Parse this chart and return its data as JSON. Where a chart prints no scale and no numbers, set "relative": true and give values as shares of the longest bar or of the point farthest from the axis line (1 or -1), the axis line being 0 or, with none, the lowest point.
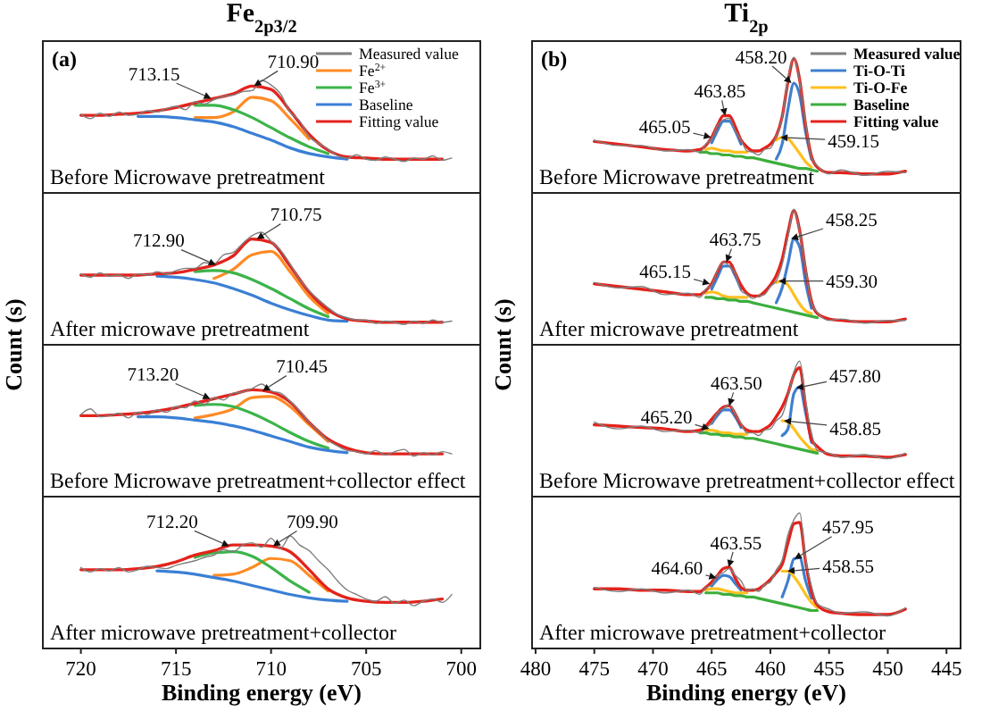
{
  "chart_data": [
    {
      "type": "line",
      "title": "Fe$_{2p3/2}$",
      "ylabel": "Count (s)",
      "subtitle": "Before Microwave pretreatment",
      "relative": true,
      "legend": "top right",
      "tick_labels": false,
      "xlim": [
        722,
        699
      ],
      "x": [
        720,
        719,
        718,
        717,
        716,
        715,
        714,
        713,
        712,
        711,
        710,
        709,
        708,
        707,
        706,
        705,
        704,
        703,
        702,
        701
      ],
      "annotations": [
        "(a)",
        {
          "text": "713.15",
          "x": 713.15,
          "y": 0.84
        },
        {
          "text": "710.90",
          "x": 710.9,
          "y": 0.95
        }
      ],
      "series": [
        {
          "name": "Measured value",
          "color": "#7f7f7f",
          "x": [
            720,
            719.5,
            719,
            718.5,
            718,
            717.5,
            717,
            716.5,
            716,
            715.5,
            715,
            714.5,
            714,
            713.5,
            713,
            712.5,
            712,
            711.5,
            711,
            710.5,
            710,
            709.5,
            709,
            708.5,
            708,
            707.5,
            707,
            706.5,
            706,
            705.5,
            705,
            704.5,
            704,
            703.5,
            703,
            702.5,
            702,
            701.5,
            701,
            700.5
          ],
          "values": [
            0.7,
            0.66,
            0.71,
            0.68,
            0.72,
            0.69,
            0.7,
            0.73,
            0.72,
            0.75,
            0.77,
            0.74,
            0.81,
            0.79,
            0.83,
            0.86,
            0.87,
            0.9,
            0.91,
            1.0,
            0.96,
            0.88,
            0.72,
            0.64,
            0.5,
            0.44,
            0.39,
            0.33,
            0.31,
            0.34,
            0.3,
            0.29,
            0.32,
            0.3,
            0.28,
            0.31,
            0.3,
            0.33,
            0.29,
            0.31
          ]
        },
        {
          "name": "Fe$^{2+}$",
          "color": "#ff8a24",
          "values": [
            null,
            null,
            null,
            null,
            null,
            null,
            0.67,
            0.67,
            0.72,
            0.85,
            0.82,
            0.66,
            0.48,
            null,
            null,
            null,
            null,
            null,
            null,
            null
          ]
        },
        {
          "name": "Fe$^{3+}$",
          "color": "#3cb44a",
          "values": [
            null,
            null,
            null,
            null,
            null,
            null,
            0.78,
            0.78,
            0.74,
            0.67,
            0.58,
            0.49,
            0.41,
            0.35,
            null,
            null,
            null,
            null,
            null,
            null
          ]
        },
        {
          "name": "Baseline",
          "color": "#3a7fd5",
          "values": [
            null,
            null,
            null,
            0.68,
            0.68,
            0.67,
            0.65,
            0.63,
            0.59,
            0.53,
            0.47,
            0.4,
            0.35,
            0.32,
            0.3,
            null,
            null,
            null,
            null,
            null
          ]
        },
        {
          "name": "Fitting value",
          "color": "#e3231c",
          "values": [
            0.69,
            0.69,
            0.7,
            0.71,
            0.73,
            0.76,
            0.8,
            0.84,
            0.88,
            0.95,
            0.92,
            0.73,
            0.52,
            0.38,
            0.32,
            0.31,
            0.3,
            0.3,
            0.3,
            0.3
          ]
        }
      ]
    },
    {
      "type": "line",
      "subtitle": "After microwave pretreatment",
      "relative": true,
      "tick_labels": false,
      "xlim": [
        722,
        699
      ],
      "x": [
        720,
        719,
        718,
        717,
        716,
        715,
        714,
        713,
        712,
        711,
        710,
        709,
        708,
        707,
        706,
        705,
        704,
        703,
        702,
        701
      ],
      "annotations": [
        {
          "text": "712.90",
          "x": 712.9,
          "y": 0.71
        },
        {
          "text": "710.75",
          "x": 710.75,
          "y": 0.94
        }
      ],
      "series": [
        {
          "color": "#7f7f7f",
          "x": [
            720,
            719.5,
            719,
            718.5,
            718,
            717.5,
            717,
            716.5,
            716,
            715.5,
            715,
            714.5,
            714,
            713.5,
            713,
            712.5,
            712,
            711.5,
            711,
            710.5,
            710,
            709.5,
            709,
            708.5,
            708,
            707.5,
            707,
            706.5,
            706,
            705.5,
            705,
            704.5,
            704,
            703.5,
            703,
            702.5,
            702,
            701.5,
            701,
            700.5
          ],
          "values": [
            0.63,
            0.6,
            0.64,
            0.61,
            0.62,
            0.59,
            0.63,
            0.62,
            0.65,
            0.63,
            0.66,
            0.68,
            0.68,
            0.73,
            0.72,
            0.8,
            0.82,
            0.9,
            0.97,
            1.0,
            0.92,
            0.84,
            0.72,
            0.58,
            0.48,
            0.4,
            0.33,
            0.27,
            0.24,
            0.22,
            0.22,
            0.19,
            0.21,
            0.2,
            0.18,
            0.21,
            0.19,
            0.22,
            0.2,
            0.21
          ]
        },
        {
          "color": "#ff8a24",
          "values": [
            null,
            null,
            null,
            null,
            null,
            null,
            null,
            0.59,
            0.67,
            0.8,
            0.83,
            0.65,
            0.43,
            0.28,
            null,
            null,
            null,
            null,
            null,
            null
          ]
        },
        {
          "color": "#3cb44a",
          "values": [
            null,
            null,
            null,
            null,
            null,
            null,
            0.65,
            0.66,
            0.64,
            0.58,
            0.5,
            0.41,
            0.32,
            0.25,
            null,
            null,
            null,
            null,
            null,
            null
          ]
        },
        {
          "color": "#3a7fd5",
          "values": [
            null,
            null,
            null,
            null,
            0.61,
            0.6,
            0.58,
            0.55,
            0.5,
            0.44,
            0.37,
            0.31,
            0.26,
            0.22,
            0.21,
            null,
            null,
            null,
            null,
            null
          ]
        },
        {
          "color": "#e3231c",
          "values": [
            0.62,
            0.62,
            0.62,
            0.62,
            0.63,
            0.64,
            0.67,
            0.71,
            0.79,
            0.94,
            0.91,
            0.7,
            0.47,
            0.31,
            0.23,
            0.21,
            0.2,
            0.2,
            0.2,
            0.2
          ]
        }
      ]
    },
    {
      "type": "line",
      "subtitle": "Before Microwave pretreatment+collector effect",
      "relative": true,
      "tick_labels": false,
      "xlim": [
        722,
        699
      ],
      "x": [
        720,
        719,
        718,
        717,
        716,
        715,
        714,
        713,
        712,
        711,
        710,
        709,
        708,
        707,
        706,
        705,
        704,
        703,
        702,
        701
      ],
      "annotations": [
        {
          "text": "713.20",
          "x": 713.2,
          "y": 0.87
        },
        {
          "text": "710.45",
          "x": 710.45,
          "y": 0.94
        }
      ],
      "series": [
        {
          "color": "#7f7f7f",
          "x": [
            720,
            719.5,
            719,
            718.5,
            718,
            717.5,
            717,
            716.5,
            716,
            715.5,
            715,
            714.5,
            714,
            713.5,
            713,
            712.5,
            712,
            711.5,
            711,
            710.5,
            710,
            709.5,
            709,
            708.5,
            708,
            707.5,
            707,
            706.5,
            706,
            705.5,
            705,
            704.5,
            704,
            703.5,
            703,
            702.5,
            702,
            701.5,
            701,
            700.5
          ],
          "values": [
            0.73,
            0.78,
            0.71,
            0.72,
            0.74,
            0.7,
            0.75,
            0.73,
            0.77,
            0.75,
            0.8,
            0.79,
            0.85,
            0.82,
            0.88,
            0.86,
            0.92,
            0.93,
            0.96,
            1.0,
            0.94,
            0.92,
            0.85,
            0.76,
            0.66,
            0.58,
            0.5,
            0.45,
            0.41,
            0.4,
            0.38,
            0.41,
            0.37,
            0.4,
            0.42,
            0.36,
            0.39,
            0.37,
            0.4,
            0.38
          ]
        },
        {
          "color": "#ff8a24",
          "values": [
            null,
            null,
            null,
            null,
            null,
            null,
            0.7,
            0.73,
            0.78,
            0.88,
            0.89,
            0.8,
            0.64,
            0.49,
            null,
            null,
            null,
            null,
            null,
            null
          ]
        },
        {
          "color": "#3cb44a",
          "values": [
            null,
            null,
            null,
            null,
            null,
            null,
            0.81,
            0.82,
            0.8,
            0.74,
            0.66,
            0.57,
            0.49,
            0.43,
            null,
            null,
            null,
            null,
            null,
            null
          ]
        },
        {
          "color": "#3a7fd5",
          "values": [
            null,
            null,
            null,
            0.71,
            0.71,
            0.7,
            0.68,
            0.66,
            0.63,
            0.59,
            0.54,
            0.49,
            0.44,
            0.41,
            0.39,
            null,
            null,
            null,
            null,
            null
          ]
        },
        {
          "color": "#e3231c",
          "values": [
            0.72,
            0.72,
            0.73,
            0.74,
            0.76,
            0.79,
            0.83,
            0.87,
            0.91,
            0.95,
            0.93,
            0.84,
            0.66,
            0.51,
            0.43,
            0.39,
            0.38,
            0.38,
            0.38,
            0.38
          ]
        }
      ]
    },
    {
      "type": "line",
      "subtitle": "After microwave pretreatment+collector",
      "xlabel": "Binding energy (eV)",
      "relative": true,
      "tick_labels": "x",
      "xlim": [
        722,
        699
      ],
      "xticks": [
        720,
        715,
        710,
        705,
        700
      ],
      "x": [
        720,
        719,
        718,
        717,
        716,
        715,
        714,
        713,
        712,
        711,
        710,
        709,
        708,
        707,
        706,
        705,
        704,
        703,
        702,
        701
      ],
      "annotations": [
        {
          "text": "712.20",
          "x": 712.2,
          "y": 0.91
        },
        {
          "text": "709.90",
          "x": 709.9,
          "y": 0.91
        }
      ],
      "series": [
        {
          "color": "#7f7f7f",
          "x": [
            720,
            719.5,
            719,
            718.5,
            718,
            717.5,
            717,
            716.5,
            716,
            715.5,
            715,
            714.5,
            714,
            713.5,
            713,
            712.5,
            712,
            711.5,
            711,
            710.5,
            710,
            709.5,
            709,
            708.5,
            708,
            707.5,
            707,
            706.5,
            706,
            705.5,
            705,
            704.5,
            704,
            703.5,
            703,
            702.5,
            702,
            701.5,
            701,
            700.5
          ],
          "values": [
            0.72,
            0.68,
            0.71,
            0.69,
            0.72,
            0.68,
            0.7,
            0.73,
            0.72,
            0.71,
            0.74,
            0.76,
            0.78,
            0.81,
            0.83,
            0.88,
            0.86,
            0.92,
            0.94,
            0.9,
            0.98,
            0.89,
            1.0,
            0.92,
            0.87,
            0.78,
            0.7,
            0.6,
            0.52,
            0.48,
            0.44,
            0.42,
            0.46,
            0.4,
            0.43,
            0.38,
            0.42,
            0.44,
            0.41,
            0.48
          ]
        },
        {
          "color": "#ff8a24",
          "values": [
            null,
            null,
            null,
            null,
            null,
            null,
            null,
            0.65,
            0.66,
            0.72,
            0.8,
            0.78,
            0.65,
            0.51,
            null,
            null,
            null,
            null,
            null,
            null
          ]
        },
        {
          "color": "#3cb44a",
          "values": [
            null,
            null,
            null,
            null,
            null,
            null,
            0.81,
            0.85,
            0.86,
            0.82,
            0.72,
            0.6,
            0.5,
            null,
            null,
            null,
            null,
            null,
            null,
            null
          ]
        },
        {
          "color": "#3a7fd5",
          "values": [
            null,
            null,
            null,
            null,
            0.69,
            0.68,
            0.66,
            0.63,
            0.6,
            0.56,
            0.52,
            0.48,
            0.45,
            0.43,
            0.42,
            null,
            null,
            null,
            null,
            null
          ]
        },
        {
          "color": "#e3231c",
          "values": [
            0.7,
            0.7,
            0.7,
            0.71,
            0.73,
            0.77,
            0.83,
            0.87,
            0.92,
            0.92,
            0.91,
            0.86,
            0.7,
            0.53,
            0.45,
            0.42,
            0.41,
            0.41,
            0.42,
            0.44
          ]
        }
      ]
    },
    {
      "type": "line",
      "title": "Ti$_{2p}$",
      "ylabel": "Count (s)",
      "subtitle": "Before Microwave pretreatment",
      "relative": true,
      "legend": "top right",
      "tick_labels": false,
      "xlim": [
        480.3,
        443.8
      ],
      "x": [
        475,
        473,
        471,
        469,
        467,
        466,
        465.5,
        465,
        464.5,
        464,
        463.5,
        463,
        462.5,
        462,
        461.5,
        461,
        460.5,
        460,
        459.5,
        459,
        458.5,
        458,
        457.5,
        457,
        456.5,
        456,
        455,
        454,
        452,
        450,
        448.5
      ],
      "annotations": [
        "(b)",
        {
          "text": "465.05",
          "x": 465.05,
          "y": 0.41
        },
        {
          "text": "463.85",
          "x": 463.85,
          "y": 0.57
        },
        {
          "text": "459.15",
          "x": 459.15,
          "y": 0.41
        },
        {
          "text": "458.20",
          "x": 458.2,
          "y": 0.81
        }
      ],
      "series": [
        {
          "name": "Measured value",
          "color": "#7f7f7f",
          "values": [
            0.39,
            0.35,
            0.35,
            0.31,
            0.32,
            0.3,
            0.36,
            0.4,
            0.5,
            0.54,
            0.55,
            0.46,
            0.39,
            0.31,
            0.3,
            0.28,
            0.32,
            0.33,
            0.42,
            0.55,
            0.84,
            1.0,
            0.82,
            0.52,
            0.26,
            0.2,
            0.14,
            0.17,
            0.13,
            0.16,
            0.15
          ]
        },
        {
          "name": "Ti-O-Ti",
          "color": "#3f7fcf",
          "values": [
            null,
            null,
            null,
            null,
            null,
            null,
            null,
            0.37,
            0.46,
            0.53,
            0.53,
            0.46,
            0.36,
            null,
            null,
            null,
            null,
            null,
            0.25,
            0.36,
            0.62,
            0.81,
            0.72,
            0.45,
            0.25,
            null,
            null,
            null,
            null,
            null,
            null
          ]
        },
        {
          "name": "Ti-O-Fe",
          "color": "#ffbf1f",
          "values": [
            null,
            null,
            null,
            null,
            null,
            null,
            0.32,
            0.33,
            0.32,
            0.31,
            0.31,
            0.3,
            0.3,
            0.3,
            null,
            null,
            null,
            null,
            0.39,
            0.41,
            0.4,
            0.35,
            0.29,
            0.23,
            0.19,
            null,
            null,
            null,
            null,
            null,
            null
          ]
        },
        {
          "name": "Baseline",
          "color": "#3cae3c",
          "values": [
            null,
            null,
            null,
            null,
            null,
            0.3,
            0.3,
            0.29,
            0.29,
            0.28,
            0.28,
            0.27,
            0.27,
            0.26,
            0.26,
            0.25,
            0.24,
            0.23,
            0.22,
            0.21,
            0.2,
            0.19,
            0.18,
            0.18,
            0.17,
            0.16,
            null,
            null,
            null,
            null,
            null
          ]
        },
        {
          "name": "Fitting value",
          "color": "#e3231c",
          "values": [
            0.38,
            0.36,
            0.34,
            0.32,
            0.31,
            0.32,
            0.35,
            0.41,
            0.5,
            0.57,
            0.57,
            0.49,
            0.39,
            0.34,
            0.31,
            0.31,
            0.33,
            0.36,
            0.42,
            0.56,
            0.82,
            0.99,
            0.83,
            0.5,
            0.27,
            0.19,
            0.15,
            0.15,
            0.14,
            0.14,
            0.16
          ]
        }
      ]
    },
    {
      "type": "line",
      "subtitle": "After microwave pretreatment",
      "relative": true,
      "tick_labels": false,
      "xlim": [
        480.3,
        443.8
      ],
      "x": [
        475,
        473,
        471,
        469,
        467,
        466,
        465.5,
        465,
        464.5,
        464,
        463.5,
        463,
        462.5,
        462,
        461.5,
        461,
        460.5,
        460,
        459.5,
        459,
        458.5,
        458,
        457.5,
        457,
        456.5,
        456,
        455,
        454,
        452,
        450,
        448.5
      ],
      "annotations": [
        {
          "text": "465.15",
          "x": 465.15,
          "y": 0.45
        },
        {
          "text": "463.75",
          "x": 463.75,
          "y": 0.61
        },
        {
          "text": "459.30",
          "x": 459.3,
          "y": 0.47
        },
        {
          "text": "458.25",
          "x": 458.25,
          "y": 0.78
        }
      ],
      "series": [
        {
          "color": "#7f7f7f",
          "values": [
            0.46,
            0.42,
            0.43,
            0.37,
            0.38,
            0.35,
            0.41,
            0.44,
            0.55,
            0.61,
            0.58,
            0.53,
            0.4,
            0.37,
            0.34,
            0.36,
            0.37,
            0.43,
            0.47,
            0.59,
            0.8,
            1.0,
            0.83,
            0.56,
            0.31,
            0.24,
            0.18,
            0.19,
            0.16,
            0.18,
            0.18
          ]
        },
        {
          "color": "#3f7fcf",
          "values": [
            null,
            null,
            null,
            null,
            null,
            null,
            null,
            0.41,
            0.5,
            0.58,
            0.58,
            0.51,
            0.41,
            null,
            null,
            null,
            null,
            null,
            0.31,
            0.42,
            0.6,
            0.78,
            0.72,
            0.46,
            0.27,
            null,
            null,
            null,
            null,
            null,
            null
          ]
        },
        {
          "color": "#ffbf1f",
          "values": [
            null,
            null,
            null,
            null,
            null,
            null,
            0.38,
            0.39,
            0.38,
            0.36,
            0.35,
            0.35,
            0.35,
            0.35,
            null,
            null,
            null,
            null,
            0.46,
            0.47,
            0.44,
            0.37,
            0.3,
            0.25,
            0.23,
            null,
            null,
            null,
            null,
            null,
            null
          ]
        },
        {
          "color": "#3cae3c",
          "values": [
            null,
            null,
            null,
            null,
            null,
            null,
            0.35,
            0.35,
            0.34,
            0.34,
            0.33,
            0.33,
            0.32,
            0.32,
            0.31,
            0.3,
            0.29,
            0.28,
            0.27,
            0.26,
            0.25,
            0.24,
            0.23,
            0.22,
            0.21,
            0.2,
            null,
            null,
            null,
            null,
            null
          ]
        },
        {
          "color": "#e3231c",
          "values": [
            0.45,
            0.43,
            0.41,
            0.39,
            0.37,
            0.37,
            0.4,
            0.45,
            0.54,
            0.61,
            0.61,
            0.53,
            0.44,
            0.38,
            0.36,
            0.36,
            0.39,
            0.44,
            0.51,
            0.63,
            0.83,
            0.99,
            0.84,
            0.55,
            0.32,
            0.23,
            0.19,
            0.18,
            0.17,
            0.17,
            0.19
          ]
        }
      ]
    },
    {
      "type": "line",
      "subtitle": "Before Microwave pretreatment+collector effect",
      "relative": true,
      "tick_labels": false,
      "xlim": [
        480.3,
        443.8
      ],
      "x": [
        475,
        473,
        471,
        469,
        467,
        466,
        465.5,
        465,
        464.5,
        464,
        463.5,
        463,
        462.5,
        462,
        461.5,
        461,
        460.5,
        460,
        459.5,
        459,
        458.5,
        458,
        457.5,
        457,
        456.5,
        456,
        455,
        454,
        452,
        450,
        448.5
      ],
      "annotations": [
        {
          "text": "465.20",
          "x": 465.2,
          "y": 0.5
        },
        {
          "text": "463.50",
          "x": 463.5,
          "y": 0.67
        },
        {
          "text": "458.85",
          "x": 458.85,
          "y": 0.56
        },
        {
          "text": "457.80",
          "x": 457.8,
          "y": 0.8
        }
      ],
      "series": [
        {
          "color": "#7f7f7f",
          "values": [
            0.55,
            0.5,
            0.52,
            0.48,
            0.49,
            0.47,
            0.51,
            0.54,
            0.62,
            0.65,
            0.68,
            0.61,
            0.54,
            0.47,
            0.47,
            0.45,
            0.49,
            0.5,
            0.56,
            0.6,
            0.74,
            0.92,
            1.0,
            0.7,
            0.47,
            0.34,
            0.32,
            0.29,
            0.31,
            0.28,
            0.32
          ]
        },
        {
          "color": "#3f7fcf",
          "values": [
            null,
            null,
            null,
            null,
            null,
            null,
            null,
            0.54,
            0.6,
            0.64,
            0.64,
            0.59,
            0.51,
            null,
            null,
            null,
            null,
            null,
            null,
            0.45,
            0.5,
            0.76,
            0.81,
            0.62,
            0.4,
            null,
            null,
            null,
            null,
            null,
            null
          ]
        },
        {
          "color": "#ffbf1f",
          "values": [
            null,
            null,
            null,
            null,
            null,
            null,
            0.49,
            0.49,
            0.48,
            0.47,
            0.47,
            0.46,
            0.46,
            0.46,
            null,
            null,
            null,
            null,
            null,
            0.56,
            0.55,
            0.5,
            0.44,
            0.39,
            0.35,
            0.34,
            null,
            null,
            null,
            null,
            null
          ]
        },
        {
          "color": "#3cae3c",
          "values": [
            null,
            null,
            null,
            null,
            null,
            0.47,
            0.47,
            0.46,
            0.46,
            0.45,
            0.45,
            0.44,
            0.44,
            0.43,
            0.43,
            0.42,
            0.41,
            0.4,
            0.39,
            0.38,
            0.37,
            0.36,
            0.35,
            0.34,
            0.33,
            0.32,
            null,
            null,
            null,
            null,
            null
          ]
        },
        {
          "color": "#e3231c",
          "values": [
            0.53,
            0.52,
            0.51,
            0.5,
            0.48,
            0.49,
            0.52,
            0.57,
            0.62,
            0.66,
            0.67,
            0.61,
            0.53,
            0.49,
            0.48,
            0.48,
            0.5,
            0.53,
            0.59,
            0.66,
            0.76,
            0.9,
            0.95,
            0.67,
            0.42,
            0.37,
            0.31,
            0.3,
            0.3,
            0.29,
            0.31
          ]
        }
      ]
    },
    {
      "type": "line",
      "subtitle": "After microwave pretreatment+collector",
      "xlabel": "Binding energy (eV)",
      "relative": true,
      "tick_labels": "x",
      "xlim": [
        480.3,
        443.8
      ],
      "xticks": [
        480,
        475,
        470,
        465,
        460,
        455,
        450,
        445
      ],
      "x": [
        475,
        473,
        471,
        469,
        467,
        466,
        465.5,
        465,
        464.5,
        464,
        463.5,
        463,
        462.5,
        462,
        461.5,
        461,
        460.5,
        460,
        459.5,
        459,
        458.5,
        458,
        457.5,
        457,
        456.5,
        456,
        455,
        454,
        452,
        450,
        448.5
      ],
      "annotations": [
        {
          "text": "464.60",
          "x": 464.6,
          "y": 0.52
        },
        {
          "text": "463.55",
          "x": 463.55,
          "y": 0.6
        },
        {
          "text": "458.55",
          "x": 458.55,
          "y": 0.57
        },
        {
          "text": "457.95",
          "x": 457.95,
          "y": 0.66
        }
      ],
      "series": [
        {
          "color": "#7f7f7f",
          "values": [
            0.45,
            0.42,
            0.44,
            0.41,
            0.43,
            0.4,
            0.45,
            0.47,
            0.54,
            0.56,
            0.59,
            0.54,
            0.5,
            0.43,
            0.44,
            0.42,
            0.47,
            0.49,
            0.58,
            0.65,
            0.84,
            0.95,
            1.0,
            0.66,
            0.46,
            0.33,
            0.29,
            0.26,
            0.27,
            0.24,
            0.3
          ]
        },
        {
          "color": "#3f7fcf",
          "values": [
            null,
            null,
            null,
            null,
            null,
            null,
            null,
            0.46,
            0.51,
            0.54,
            0.53,
            0.48,
            0.43,
            null,
            null,
            null,
            null,
            null,
            null,
            0.38,
            0.5,
            0.66,
            0.67,
            0.5,
            0.37,
            null,
            null,
            null,
            null,
            null,
            null
          ]
        },
        {
          "color": "#ffbf1f",
          "values": [
            null,
            null,
            null,
            null,
            null,
            null,
            0.43,
            0.44,
            0.44,
            0.43,
            0.42,
            0.41,
            0.41,
            0.41,
            null,
            null,
            null,
            null,
            null,
            0.57,
            0.57,
            0.53,
            0.47,
            0.4,
            0.34,
            0.3,
            null,
            null,
            null,
            null,
            null
          ]
        },
        {
          "color": "#3cae3c",
          "values": [
            null,
            null,
            null,
            null,
            null,
            null,
            0.41,
            0.41,
            0.41,
            0.4,
            0.4,
            0.39,
            0.39,
            0.38,
            0.38,
            0.37,
            0.36,
            0.35,
            0.34,
            0.33,
            0.32,
            0.31,
            0.3,
            0.29,
            0.28,
            0.28,
            null,
            null,
            null,
            null,
            null
          ]
        },
        {
          "color": "#e3231c",
          "values": [
            0.44,
            0.44,
            0.43,
            0.43,
            0.42,
            0.42,
            0.45,
            0.49,
            0.54,
            0.59,
            0.6,
            0.52,
            0.45,
            0.43,
            0.43,
            0.44,
            0.47,
            0.51,
            0.56,
            0.62,
            0.78,
            0.92,
            0.93,
            0.64,
            0.42,
            0.32,
            0.27,
            0.26,
            0.25,
            0.25,
            0.29
          ]
        }
      ]
    }
  ]
}
